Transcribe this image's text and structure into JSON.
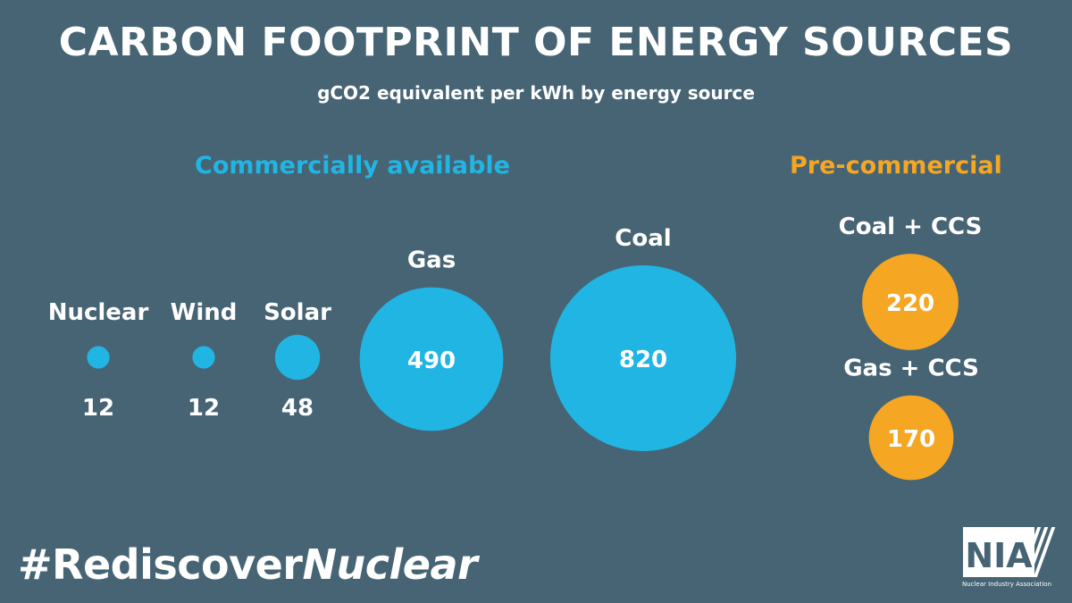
{
  "title": "CARBON FOOTPRINT OF ENERGY SOURCES",
  "subtitle": "gCO2 equivalent per kWh by energy source",
  "groups": {
    "commercial": {
      "label": "Commercially available",
      "color": "#21b5e3"
    },
    "precommercial": {
      "label": "Pre-commercial",
      "color": "#f5a623"
    }
  },
  "hashtag": {
    "prefix": "#Rediscover",
    "emphasis": "Nuclear"
  },
  "logo": {
    "letters": "NIA",
    "caption": "Nuclear Industry Association",
    "icon": "nia-logo-icon"
  },
  "chart_data": {
    "type": "bubble",
    "title": "CARBON FOOTPRINT OF ENERGY SOURCES",
    "subtitle": "gCO2 equivalent per kWh by energy source",
    "unit": "gCO2 equivalent per kWh",
    "series": [
      {
        "name": "Commercially available",
        "color": "#21b5e3",
        "points": [
          {
            "label": "Nuclear",
            "value": 12
          },
          {
            "label": "Wind",
            "value": 12
          },
          {
            "label": "Solar",
            "value": 48
          },
          {
            "label": "Gas",
            "value": 490
          },
          {
            "label": "Coal",
            "value": 820
          }
        ]
      },
      {
        "name": "Pre-commercial",
        "color": "#f5a623",
        "points": [
          {
            "label": "Coal + CCS",
            "value": 220
          },
          {
            "label": "Gas + CCS",
            "value": 170
          }
        ]
      }
    ]
  }
}
